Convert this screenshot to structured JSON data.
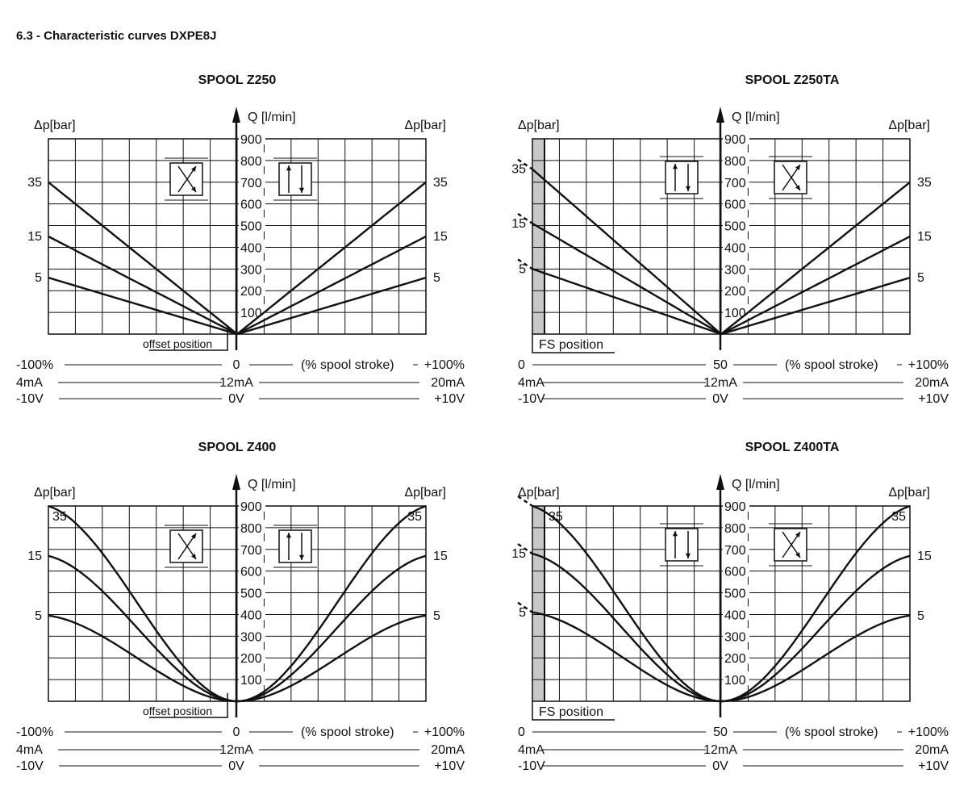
{
  "page": {
    "title": "6.3 - Characteristic curves DXPE8J"
  },
  "chart_data": [
    {
      "type": "line",
      "title": "SPOOL Z250",
      "variant": "symmetric",
      "flow_axis": {
        "label": "Q [l/min]",
        "ticks": [
          100,
          200,
          300,
          400,
          500,
          600,
          700,
          800,
          900
        ],
        "ylim": [
          0,
          900
        ]
      },
      "dp_label_left": "Δp[bar]",
      "dp_label_right": "Δp[bar]",
      "box_label": "offset position",
      "stroke_axis": {
        "left": "-100%",
        "center": "0",
        "right": "+100%",
        "caption": "(% spool stroke)",
        "xlim": [
          -100,
          100
        ]
      },
      "current_axis": {
        "left": "4mA",
        "center": "12mA",
        "right": "20mA"
      },
      "voltage_axis": {
        "left": "-10V",
        "center": "0V",
        "right": "+10V"
      },
      "shape": "linear",
      "series": [
        {
          "name": "35",
          "left": {
            "x": [
              -100,
              0
            ],
            "y": [
              700,
              0
            ]
          },
          "right": {
            "x": [
              0,
              100
            ],
            "y": [
              0,
              700
            ]
          }
        },
        {
          "name": "15",
          "left": {
            "x": [
              -100,
              0
            ],
            "y": [
              450,
              0
            ]
          },
          "right": {
            "x": [
              0,
              100
            ],
            "y": [
              0,
              450
            ]
          }
        },
        {
          "name": "5",
          "left": {
            "x": [
              -100,
              0
            ],
            "y": [
              260,
              0
            ]
          },
          "right": {
            "x": [
              0,
              100
            ],
            "y": [
              0,
              260
            ]
          }
        }
      ]
    },
    {
      "type": "line",
      "title": "SPOOL Z250TA",
      "variant": "fs",
      "flow_axis": {
        "label": "Q [l/min]",
        "ticks": [
          100,
          200,
          300,
          400,
          500,
          600,
          700,
          800,
          900
        ],
        "ylim": [
          0,
          900
        ]
      },
      "dp_label_left": "Δp[bar]",
      "dp_label_right": "Δp[bar]",
      "box_label": "FS position",
      "stroke_axis": {
        "left": "0",
        "center": "50",
        "right": "+100%",
        "caption": "(% spool stroke)",
        "xlim": [
          0,
          100
        ]
      },
      "current_axis": {
        "left": "4mA",
        "center": "12mA",
        "right": "20mA"
      },
      "voltage_axis": {
        "left": "-10V",
        "center": "0V",
        "right": "+10V"
      },
      "shape": "linear",
      "series": [
        {
          "name": "35",
          "left": {
            "x": [
              0,
              50
            ],
            "y": [
              760,
              0
            ]
          },
          "right": {
            "x": [
              50,
              100
            ],
            "y": [
              0,
              700
            ]
          }
        },
        {
          "name": "15",
          "left": {
            "x": [
              0,
              50
            ],
            "y": [
              510,
              0
            ]
          },
          "right": {
            "x": [
              50,
              100
            ],
            "y": [
              0,
              450
            ]
          }
        },
        {
          "name": "5",
          "left": {
            "x": [
              0,
              50
            ],
            "y": [
              300,
              0
            ]
          },
          "right": {
            "x": [
              50,
              100
            ],
            "y": [
              0,
              260
            ]
          }
        }
      ]
    },
    {
      "type": "line",
      "title": "SPOOL Z400",
      "variant": "symmetric",
      "flow_axis": {
        "label": "Q [l/min]",
        "ticks": [
          100,
          200,
          300,
          400,
          500,
          600,
          700,
          800,
          900
        ],
        "ylim": [
          0,
          900
        ]
      },
      "dp_label_left": "Δp[bar]",
      "dp_label_right": "Δp[bar]",
      "box_label": "offset position",
      "stroke_axis": {
        "left": "-100%",
        "center": "0",
        "right": "+100%",
        "caption": "(% spool stroke)",
        "xlim": [
          -100,
          100
        ]
      },
      "current_axis": {
        "left": "4mA",
        "center": "12mA",
        "right": "20mA"
      },
      "voltage_axis": {
        "left": "-10V",
        "center": "0V",
        "right": "+10V"
      },
      "shape": "progressive",
      "series": [
        {
          "name": "35",
          "left": {
            "x": [
              -100,
              0
            ],
            "y": [
              900,
              0
            ]
          },
          "right": {
            "x": [
              0,
              100
            ],
            "y": [
              0,
              900
            ]
          }
        },
        {
          "name": "15",
          "left": {
            "x": [
              -100,
              0
            ],
            "y": [
              670,
              0
            ]
          },
          "right": {
            "x": [
              0,
              100
            ],
            "y": [
              0,
              670
            ]
          }
        },
        {
          "name": "5",
          "left": {
            "x": [
              -100,
              0
            ],
            "y": [
              395,
              0
            ]
          },
          "right": {
            "x": [
              0,
              100
            ],
            "y": [
              0,
              395
            ]
          }
        }
      ]
    },
    {
      "type": "line",
      "title": "SPOOL Z400TA",
      "variant": "fs",
      "flow_axis": {
        "label": "Q [l/min]",
        "ticks": [
          100,
          200,
          300,
          400,
          500,
          600,
          700,
          800,
          900
        ],
        "ylim": [
          0,
          900
        ]
      },
      "dp_label_left": "Δp[bar]",
      "dp_label_right": "Δp[bar]",
      "box_label": "FS position",
      "stroke_axis": {
        "left": "0",
        "center": "50",
        "right": "+100%",
        "caption": "(% spool stroke)",
        "xlim": [
          0,
          100
        ]
      },
      "current_axis": {
        "left": "4mA",
        "center": "12mA",
        "right": "20mA"
      },
      "voltage_axis": {
        "left": "-10V",
        "center": "0V",
        "right": "+10V"
      },
      "shape": "progressive",
      "series": [
        {
          "name": "35",
          "left": {
            "x": [
              0,
              50
            ],
            "y": [
              900,
              0
            ]
          },
          "right": {
            "x": [
              50,
              100
            ],
            "y": [
              0,
              900
            ]
          }
        },
        {
          "name": "15",
          "left": {
            "x": [
              0,
              50
            ],
            "y": [
              680,
              0
            ]
          },
          "right": {
            "x": [
              50,
              100
            ],
            "y": [
              0,
              670
            ]
          }
        },
        {
          "name": "5",
          "left": {
            "x": [
              0,
              50
            ],
            "y": [
              410,
              0
            ]
          },
          "right": {
            "x": [
              50,
              100
            ],
            "y": [
              0,
              395
            ]
          }
        }
      ]
    }
  ]
}
